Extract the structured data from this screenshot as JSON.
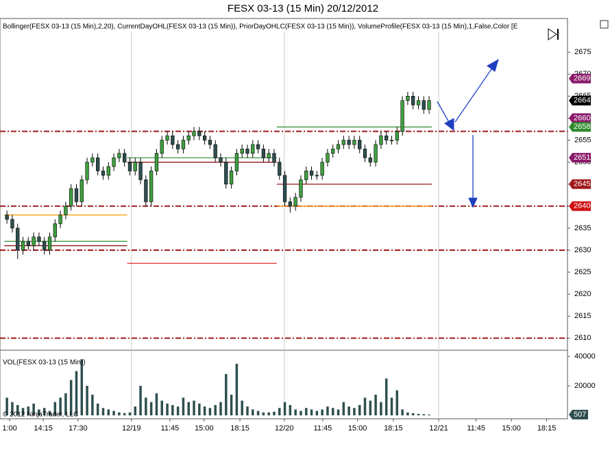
{
  "chart_data": [
    {
      "type": "candlestick",
      "title": "FESX 03-13 (15 Min)  20/12/2012",
      "subtitle": "Bollinger(FESX 03-13 (15 Min),2,20), CurrentDayOHL(FESX 03-13 (15 Min)), PriorDayOHLC(FESX 03-13 (15 Min)), VolumeProfile(FESX 03-13 (15 Min),1,False,Color [E",
      "ylim": [
        2607.4,
        2682.5
      ],
      "yticks": [
        2610,
        2615,
        2620,
        2625,
        2630,
        2635,
        2640,
        2645,
        2650,
        2655,
        2660,
        2665,
        2670,
        2675
      ],
      "xlim": [
        -1.3,
        104.9
      ],
      "xticks": [
        {
          "value": 0.5,
          "label": "1:00"
        },
        {
          "value": 6.8,
          "label": "14:15"
        },
        {
          "value": 13.3,
          "label": "17:30"
        },
        {
          "value": 23.3,
          "label": "12/19"
        },
        {
          "value": 30.5,
          "label": "11:45"
        },
        {
          "value": 36.9,
          "label": "15:00"
        },
        {
          "value": 43.6,
          "label": "18:15"
        },
        {
          "value": 51.9,
          "label": "12/20"
        },
        {
          "value": 59.1,
          "label": "11:45"
        },
        {
          "value": 65.6,
          "label": "15:00"
        },
        {
          "value": 72.3,
          "label": "18:15"
        },
        {
          "value": 80.8,
          "label": "12/21"
        },
        {
          "value": 87.8,
          "label": "11:45"
        },
        {
          "value": 94.4,
          "label": "15:00"
        },
        {
          "value": 101,
          "label": "18:15"
        }
      ],
      "up_color": "#3f9f3f",
      "down_color": "#2f4f4f",
      "open": [
        2638,
        2637,
        2635,
        2630,
        2632,
        2631,
        2633,
        2632,
        2630,
        2633,
        2636,
        2638,
        2640,
        2644,
        2641,
        2646,
        2650,
        2651,
        2648,
        2647,
        2649,
        2651,
        2652,
        2650,
        2648,
        2650,
        2646,
        2641,
        2648,
        2652,
        2655,
        2656,
        2654,
        2653,
        2655,
        2656,
        2657,
        2656,
        2655,
        2654,
        2651,
        2650,
        2645,
        2648,
        2652,
        2653,
        2652,
        2654,
        2653,
        2651,
        2652,
        2650,
        2647,
        2641,
        2640,
        2642,
        2646,
        2648,
        2647,
        2647,
        2650,
        2652,
        2653,
        2654,
        2655,
        2654,
        2655,
        2653,
        2651,
        2650,
        2654,
        2656,
        2655,
        2655,
        2657,
        2664,
        2665,
        2663,
        2664,
        2662
      ],
      "high": [
        2639,
        2638,
        2636,
        2633,
        2633,
        2634,
        2634,
        2633,
        2634,
        2637,
        2639,
        2641,
        2645,
        2645,
        2647,
        2651,
        2652,
        2652,
        2649,
        2650,
        2652,
        2653,
        2653,
        2651,
        2651,
        2651,
        2647,
        2649,
        2653,
        2656,
        2657,
        2657,
        2655,
        2656,
        2657,
        2658,
        2658,
        2657,
        2656,
        2655,
        2652,
        2651,
        2649,
        2653,
        2654,
        2654,
        2655,
        2655,
        2654,
        2653,
        2653,
        2651,
        2648,
        2642,
        2643,
        2647,
        2649,
        2649,
        2648,
        2651,
        2653,
        2654,
        2655,
        2656,
        2656,
        2656,
        2656,
        2654,
        2652,
        2655,
        2657,
        2657,
        2656,
        2658,
        2665,
        2666,
        2666,
        2665,
        2665,
        2665
      ],
      "low": [
        2636,
        2634,
        2628,
        2629,
        2630,
        2630,
        2631,
        2629,
        2629,
        2632,
        2635,
        2637,
        2639,
        2640,
        2640,
        2645,
        2649,
        2647,
        2646,
        2646,
        2648,
        2650,
        2649,
        2647,
        2647,
        2645,
        2640,
        2640,
        2647,
        2651,
        2654,
        2653,
        2652,
        2652,
        2654,
        2655,
        2655,
        2654,
        2653,
        2650,
        2649,
        2644,
        2644,
        2647,
        2651,
        2651,
        2651,
        2652,
        2650,
        2650,
        2649,
        2646,
        2640,
        2638.5,
        2639,
        2641,
        2645,
        2646,
        2646,
        2646,
        2649,
        2651,
        2652,
        2653,
        2653,
        2653,
        2652,
        2650,
        2649,
        2649,
        2653,
        2654,
        2654,
        2654,
        2656,
        2663,
        2662,
        2662,
        2661,
        2661
      ],
      "close": [
        2637,
        2635,
        2630,
        2632,
        2631,
        2633,
        2632,
        2630,
        2633,
        2636,
        2638,
        2640,
        2644,
        2641,
        2646,
        2650,
        2651,
        2648,
        2647,
        2649,
        2651,
        2652,
        2650,
        2648,
        2650,
        2646,
        2641,
        2648,
        2652,
        2655,
        2656,
        2654,
        2653,
        2655,
        2656,
        2657,
        2656,
        2655,
        2654,
        2651,
        2650,
        2645,
        2648,
        2652,
        2653,
        2652,
        2654,
        2653,
        2651,
        2652,
        2650,
        2647,
        2641,
        2640,
        2642,
        2646,
        2648,
        2647,
        2647,
        2650,
        2652,
        2653,
        2654,
        2655,
        2654,
        2655,
        2653,
        2651,
        2650,
        2654,
        2656,
        2655,
        2655,
        2657,
        2664,
        2665,
        2663,
        2664,
        2662,
        2664
      ],
      "levels": [
        2657,
        2640,
        2630,
        2610
      ],
      "level_color": "#a01818",
      "segments": [
        {
          "from": 0,
          "to": 23,
          "value": 2638,
          "color": "#ff9900"
        },
        {
          "from": 0,
          "to": 23,
          "value": 2632,
          "color": "#2e8b2e"
        },
        {
          "from": 0,
          "to": 23,
          "value": 2631,
          "color": "#8b0000"
        },
        {
          "from": 23,
          "to": 51,
          "value": 2651,
          "color": "#2e8b2e"
        },
        {
          "from": 23,
          "to": 51,
          "value": 2650,
          "color": "#8b0000"
        },
        {
          "from": 23,
          "to": 51,
          "value": 2627,
          "color": "#e01010"
        },
        {
          "from": 51,
          "to": 80,
          "value": 2658,
          "color": "#2e8b2e"
        },
        {
          "from": 51,
          "to": 80,
          "value": 2645,
          "color": "#8b0000"
        },
        {
          "from": 51,
          "to": 80,
          "value": 2640,
          "color": "#ff9900"
        }
      ],
      "price_markers": [
        {
          "value": 2669,
          "color": "#8b1a6b"
        },
        {
          "value": 2664,
          "color": "#000000"
        },
        {
          "value": 2660,
          "color": "#8b1a6b"
        },
        {
          "value": 2658,
          "color": "#2e8b2e"
        },
        {
          "value": 2651,
          "color": "#8b1a6b"
        },
        {
          "value": 2645,
          "color": "#a01818"
        },
        {
          "value": 2640,
          "color": "#d01010"
        }
      ]
    },
    {
      "type": "bar",
      "title": "VOL(FESX 03-13 (15 Min))",
      "copyright": "© 2012 NinjaTrader, LLC",
      "color": "#2f4f4f",
      "ylim": [
        0,
        43700
      ],
      "yticks": [
        20000,
        40000
      ],
      "values": [
        12000,
        9000,
        7000,
        5000,
        6000,
        8000,
        4000,
        5000,
        3000,
        9000,
        12000,
        15000,
        24000,
        30000,
        38000,
        20000,
        14000,
        8000,
        5000,
        4000,
        3000,
        2000,
        1500,
        2000,
        6000,
        20000,
        12000,
        9000,
        15000,
        10000,
        8000,
        7000,
        6000,
        12000,
        9000,
        10000,
        8000,
        6000,
        5000,
        7000,
        9000,
        28000,
        14000,
        35000,
        10000,
        6000,
        4000,
        3000,
        2000,
        2000,
        2500,
        5000,
        9000,
        7000,
        4000,
        3000,
        5000,
        4000,
        3000,
        4000,
        6000,
        5000,
        4000,
        9000,
        6000,
        5000,
        7000,
        12000,
        10000,
        14000,
        9000,
        25000,
        12000,
        17000,
        4000,
        2000,
        1500,
        1000,
        800,
        507
      ]
    }
  ]
}
